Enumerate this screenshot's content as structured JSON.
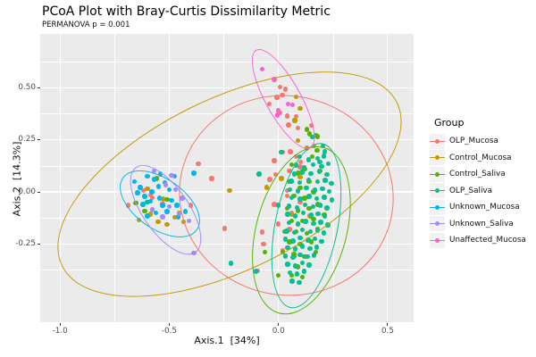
{
  "title": "PCoA Plot with Bray-Curtis Dissimilarity Metric",
  "subtitle": "PERMANOVA p = 0.001",
  "axes": {
    "x": {
      "label": "Axis.1  [34%]",
      "tick_labels": [
        "-1.0",
        "-0.5",
        "0.0",
        "0.5"
      ],
      "ticks": [
        -1.0,
        -0.5,
        0.0,
        0.5
      ],
      "range": [
        -1.09,
        0.62
      ]
    },
    "y": {
      "label": "Axis.2  [14.3%]",
      "tick_labels": [
        "0.50",
        "0.25",
        "0.00",
        "-0.25"
      ],
      "ticks": [
        0.5,
        0.25,
        0.0,
        -0.25
      ],
      "range": [
        -0.63,
        0.76
      ]
    }
  },
  "legend": {
    "title": "Group",
    "items": [
      {
        "label": "OLP_Mucosa",
        "color": "#F8766D"
      },
      {
        "label": "Control_Mucosa",
        "color": "#C49A00"
      },
      {
        "label": "Control_Saliva",
        "color": "#53B400"
      },
      {
        "label": "OLP_Saliva",
        "color": "#00C094"
      },
      {
        "label": "Unknown_Mucosa",
        "color": "#00B6EB"
      },
      {
        "label": "Unknown_Saliva",
        "color": "#A58AFF"
      },
      {
        "label": "Unaffected_Mucosa",
        "color": "#FB61D7"
      }
    ]
  },
  "style_colors": {
    "panel_bg": "#EBEBEB",
    "grid": "#FFFFFF",
    "legend_key_bg": "#F2F2F2",
    "tick_text": "#4D4D4D"
  },
  "chart_data": {
    "type": "scatter",
    "title": "PCoA Plot with Bray-Curtis Dissimilarity Metric",
    "subtitle": "PERMANOVA p = 0.001",
    "xlabel": "Axis.1  [34%]",
    "ylabel": "Axis.2  [14.3%]",
    "xlim": [
      -1.09,
      0.62
    ],
    "ylim": [
      -0.63,
      0.76
    ],
    "grid": true,
    "legend_position": "right",
    "x_major_gridlines": [
      -1.0,
      -0.5,
      0.0,
      0.5
    ],
    "x_minor_gridlines": [
      -0.75,
      -0.25,
      0.25
    ],
    "y_major_gridlines": [
      0.5,
      0.25,
      0.0,
      -0.25
    ],
    "y_minor_gridlines": [
      0.625,
      0.375,
      0.125,
      -0.125,
      -0.375,
      -0.625
    ],
    "series": [
      {
        "name": "OLP_Mucosa",
        "color": "#F8766D",
        "ellipse": {
          "cx": 0.03,
          "cy": -0.015,
          "rx": 0.5,
          "ry": 0.465,
          "angle": -12
        },
        "points": [
          [
            0.007,
            0.503
          ],
          [
            0.031,
            0.493
          ],
          [
            0.018,
            0.464
          ],
          [
            -0.007,
            0.454
          ],
          [
            -0.041,
            0.421
          ],
          [
            0.041,
            0.364
          ],
          [
            0.082,
            0.361
          ],
          [
            0.007,
            0.379
          ],
          [
            0.088,
            0.307
          ],
          [
            0.047,
            0.322
          ],
          [
            0.15,
            0.32
          ],
          [
            0.102,
            0.143
          ],
          [
            -0.367,
            0.136
          ],
          [
            -0.306,
            0.064
          ],
          [
            -0.014,
            0.083
          ],
          [
            0.04,
            0.007
          ],
          [
            -0.245,
            -0.176
          ],
          [
            -0.075,
            -0.193
          ],
          [
            -0.068,
            -0.25
          ],
          [
            -0.095,
            -0.379
          ],
          [
            0.02,
            0.19
          ],
          [
            0.054,
            0.193
          ],
          [
            -0.02,
            0.15
          ],
          [
            0.05,
            0.1
          ],
          [
            -0.04,
            0.06
          ],
          [
            0.08,
            0.17
          ],
          [
            0.1,
            0.12
          ],
          [
            0.04,
            -0.02
          ],
          [
            -0.02,
            -0.06
          ],
          [
            0.06,
            -0.1
          ],
          [
            0.0,
            -0.155
          ],
          [
            0.05,
            -0.18
          ],
          [
            0.1,
            -0.05
          ],
          [
            0.02,
            -0.28
          ],
          [
            -0.687,
            -0.064
          ],
          [
            -0.578,
            -0.029
          ],
          [
            -0.531,
            -0.057
          ],
          [
            -0.619,
            0.007
          ],
          [
            -0.402,
            -0.064
          ],
          [
            -0.585,
            -0.014
          ]
        ]
      },
      {
        "name": "Control_Mucosa",
        "color": "#C49A00",
        "ellipse": {
          "cx": -0.23,
          "cy": 0.04,
          "rx": 0.87,
          "ry": 0.4,
          "angle": 26
        },
        "points": [
          [
            0.082,
            0.457
          ],
          [
            0.075,
            0.343
          ],
          [
            0.163,
            0.222
          ],
          [
            0.1,
            0.4
          ],
          [
            0.088,
            0.247
          ],
          [
            -0.224,
            0.007
          ],
          [
            -0.055,
            0.021
          ],
          [
            0.013,
            0.064
          ],
          [
            0.13,
            0.21
          ],
          [
            0.1,
            0.07
          ],
          [
            0.06,
            -0.11
          ],
          [
            0.145,
            -0.115
          ],
          [
            0.07,
            -0.31
          ],
          [
            -0.551,
            -0.143
          ],
          [
            -0.51,
            -0.157
          ],
          [
            -0.435,
            -0.143
          ],
          [
            -0.476,
            -0.121
          ],
          [
            -0.6,
            0.014
          ],
          [
            -0.64,
            -0.136
          ],
          [
            -0.528,
            -0.034
          ],
          [
            -0.455,
            -0.1
          ],
          [
            -0.585,
            -0.107
          ]
        ]
      },
      {
        "name": "Control_Saliva",
        "color": "#53B400",
        "ellipse": {
          "cx": 0.1,
          "cy": -0.18,
          "rx": 0.4,
          "ry": 0.21,
          "angle": 75
        },
        "points": [
          [
            -0.653,
            -0.053
          ],
          [
            -0.612,
            -0.093
          ],
          [
            -0.558,
            0.064
          ],
          [
            -0.51,
            -0.036
          ],
          [
            0.129,
            0.3
          ],
          [
            0.143,
            0.279
          ],
          [
            0.17,
            0.272
          ],
          [
            0.177,
            0.2
          ],
          [
            0.18,
            0.265
          ],
          [
            0.155,
            0.17
          ],
          [
            0.06,
            0.13
          ],
          [
            0.09,
            0.09
          ],
          [
            0.12,
            0.11
          ],
          [
            0.05,
            0.05
          ],
          [
            0.1,
            0.02
          ],
          [
            0.14,
            0.05
          ],
          [
            0.07,
            -0.02
          ],
          [
            0.12,
            -0.03
          ],
          [
            0.16,
            0.0
          ],
          [
            0.04,
            -0.08
          ],
          [
            0.09,
            -0.09
          ],
          [
            0.14,
            -0.08
          ],
          [
            0.18,
            -0.06
          ],
          [
            0.06,
            -0.14
          ],
          [
            0.11,
            -0.14
          ],
          [
            0.16,
            -0.13
          ],
          [
            0.03,
            -0.19
          ],
          [
            0.08,
            -0.19
          ],
          [
            0.13,
            -0.2
          ],
          [
            0.18,
            -0.18
          ],
          [
            0.05,
            -0.24
          ],
          [
            0.1,
            -0.25
          ],
          [
            0.15,
            -0.24
          ],
          [
            0.02,
            -0.29
          ],
          [
            0.07,
            -0.3
          ],
          [
            0.12,
            -0.31
          ],
          [
            0.17,
            -0.29
          ],
          [
            0.04,
            -0.35
          ],
          [
            0.09,
            -0.36
          ],
          [
            0.14,
            -0.35
          ],
          [
            0.06,
            -0.4
          ],
          [
            0.11,
            -0.41
          ],
          [
            -0.061,
            -0.29
          ],
          [
            0.0,
            -0.4
          ],
          [
            0.19,
            0.1
          ],
          [
            0.21,
            -0.11
          ]
        ]
      },
      {
        "name": "OLP_Saliva",
        "color": "#00C094",
        "ellipse": {
          "cx": 0.125,
          "cy": -0.155,
          "rx": 0.39,
          "ry": 0.145,
          "angle": 79
        },
        "points": [
          [
            -0.089,
            0.086
          ],
          [
            0.0,
            -0.064
          ],
          [
            -0.218,
            -0.343
          ],
          [
            -0.102,
            -0.382
          ],
          [
            -0.6,
            -0.05
          ],
          [
            0.013,
            0.19
          ],
          [
            0.156,
            0.264
          ],
          [
            0.204,
            0.222
          ],
          [
            0.211,
            0.193
          ],
          [
            0.19,
            0.143
          ],
          [
            0.098,
            0.168
          ],
          [
            0.138,
            0.155
          ],
          [
            0.178,
            0.162
          ],
          [
            0.208,
            0.172
          ],
          [
            0.082,
            0.128
          ],
          [
            0.118,
            0.118
          ],
          [
            0.158,
            0.131
          ],
          [
            0.198,
            0.122
          ],
          [
            0.228,
            0.135
          ],
          [
            0.072,
            0.085
          ],
          [
            0.108,
            0.095
          ],
          [
            0.148,
            0.088
          ],
          [
            0.188,
            0.096
          ],
          [
            0.222,
            0.083
          ],
          [
            0.058,
            0.052
          ],
          [
            0.098,
            0.045
          ],
          [
            0.138,
            0.058
          ],
          [
            0.178,
            0.048
          ],
          [
            0.214,
            0.055
          ],
          [
            0.242,
            0.042
          ],
          [
            0.052,
            0.012
          ],
          [
            0.09,
            0.005
          ],
          [
            0.128,
            0.018
          ],
          [
            0.168,
            0.008
          ],
          [
            0.202,
            0.015
          ],
          [
            0.232,
            0.002
          ],
          [
            0.06,
            -0.028
          ],
          [
            0.1,
            -0.035
          ],
          [
            0.14,
            -0.022
          ],
          [
            0.176,
            -0.032
          ],
          [
            0.21,
            -0.025
          ],
          [
            0.244,
            -0.038
          ],
          [
            0.048,
            -0.068
          ],
          [
            0.086,
            -0.075
          ],
          [
            0.122,
            -0.062
          ],
          [
            0.158,
            -0.072
          ],
          [
            0.192,
            -0.065
          ],
          [
            0.222,
            -0.078
          ],
          [
            0.042,
            -0.108
          ],
          [
            0.078,
            -0.115
          ],
          [
            0.114,
            -0.102
          ],
          [
            0.15,
            -0.112
          ],
          [
            0.182,
            -0.105
          ],
          [
            0.212,
            -0.118
          ],
          [
            0.048,
            -0.148
          ],
          [
            0.088,
            -0.155
          ],
          [
            0.124,
            -0.142
          ],
          [
            0.16,
            -0.152
          ],
          [
            0.194,
            -0.145
          ],
          [
            0.226,
            -0.158
          ],
          [
            0.038,
            -0.188
          ],
          [
            0.074,
            -0.195
          ],
          [
            0.11,
            -0.182
          ],
          [
            0.146,
            -0.192
          ],
          [
            0.178,
            -0.185
          ],
          [
            0.208,
            -0.198
          ],
          [
            0.032,
            -0.228
          ],
          [
            0.066,
            -0.235
          ],
          [
            0.1,
            -0.222
          ],
          [
            0.136,
            -0.232
          ],
          [
            0.168,
            -0.225
          ],
          [
            0.198,
            -0.238
          ],
          [
            0.042,
            -0.268
          ],
          [
            0.076,
            -0.275
          ],
          [
            0.11,
            -0.262
          ],
          [
            0.144,
            -0.272
          ],
          [
            0.176,
            -0.265
          ],
          [
            0.032,
            -0.308
          ],
          [
            0.066,
            -0.315
          ],
          [
            0.1,
            -0.302
          ],
          [
            0.132,
            -0.312
          ],
          [
            0.162,
            -0.305
          ],
          [
            0.042,
            -0.348
          ],
          [
            0.076,
            -0.355
          ],
          [
            0.11,
            -0.342
          ],
          [
            0.14,
            -0.352
          ],
          [
            0.052,
            -0.388
          ],
          [
            0.086,
            -0.395
          ],
          [
            0.118,
            -0.382
          ],
          [
            0.062,
            -0.428
          ],
          [
            0.096,
            -0.435
          ]
        ]
      },
      {
        "name": "Unknown_Mucosa",
        "color": "#00B6EB",
        "ellipse": {
          "cx": -0.545,
          "cy": -0.055,
          "rx": 0.21,
          "ry": 0.115,
          "angle": -35
        },
        "points": [
          [
            -0.388,
            0.09
          ],
          [
            -0.66,
            0.05
          ],
          [
            -0.633,
            0.021
          ],
          [
            -0.6,
            0.075
          ],
          [
            -0.57,
            0.06
          ],
          [
            -0.612,
            -0.021
          ],
          [
            -0.645,
            -0.005
          ],
          [
            -0.58,
            0.0
          ],
          [
            -0.55,
            0.025
          ],
          [
            -0.52,
            0.045
          ],
          [
            -0.5,
            0.012
          ],
          [
            -0.545,
            -0.03
          ],
          [
            -0.585,
            -0.045
          ],
          [
            -0.62,
            -0.06
          ],
          [
            -0.53,
            -0.065
          ],
          [
            -0.49,
            -0.04
          ],
          [
            -0.465,
            -0.065
          ],
          [
            -0.51,
            -0.095
          ],
          [
            -0.56,
            -0.1
          ],
          [
            -0.6,
            -0.115
          ],
          [
            -0.46,
            -0.12
          ],
          [
            -0.425,
            -0.095
          ],
          [
            -0.54,
            0.085
          ],
          [
            -0.475,
            0.075
          ]
        ]
      },
      {
        "name": "Unknown_Saliva",
        "color": "#A58AFF",
        "ellipse": {
          "cx": -0.52,
          "cy": -0.08,
          "rx": 0.24,
          "ry": 0.105,
          "angle": -55
        },
        "points": [
          [
            -0.57,
            0.1
          ],
          [
            -0.49,
            0.08
          ],
          [
            -0.517,
            0.035
          ],
          [
            -0.47,
            0.012
          ],
          [
            -0.44,
            -0.03
          ],
          [
            -0.5,
            -0.07
          ],
          [
            -0.455,
            -0.105
          ],
          [
            -0.53,
            -0.12
          ],
          [
            -0.41,
            -0.14
          ],
          [
            -0.388,
            -0.293
          ],
          [
            -0.578,
            -0.086
          ]
        ]
      },
      {
        "name": "Unaffected_Mucosa",
        "color": "#FB61D7",
        "ellipse": {
          "cx": 0.016,
          "cy": 0.45,
          "rx": 0.26,
          "ry": 0.08,
          "angle": -61
        },
        "points": [
          [
            -0.075,
            0.59
          ],
          [
            -0.02,
            0.54
          ],
          [
            0.045,
            0.422
          ],
          [
            0.065,
            0.418
          ],
          [
            0.0,
            0.39
          ],
          [
            -0.005,
            0.368
          ]
        ]
      }
    ]
  }
}
